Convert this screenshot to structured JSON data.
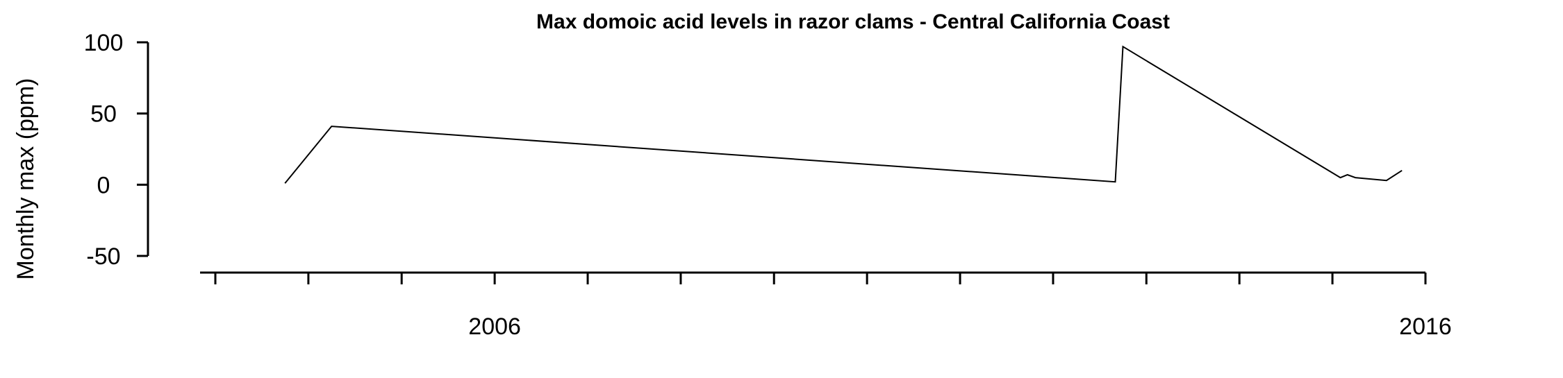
{
  "chart_data": {
    "type": "line",
    "title": "Max domoic acid levels in razor clams - Central California Coast",
    "xlabel": "",
    "ylabel": "Monthly max (ppm)",
    "ylim": [
      -50,
      100
    ],
    "yticks": [
      100,
      50,
      0,
      -50
    ],
    "xlim": [
      "2003-01-01",
      "2016-01-01"
    ],
    "xticks_major": [
      {
        "date": "2006-01-01",
        "label": "2006"
      },
      {
        "date": "2016-01-01",
        "label": "2016"
      }
    ],
    "xticks_minor": [
      "2003-01-01",
      "2004-01-01",
      "2005-01-01",
      "2007-01-01",
      "2008-01-01",
      "2009-01-01",
      "2010-01-01",
      "2011-01-01",
      "2012-01-01",
      "2013-01-01",
      "2014-01-01",
      "2015-01-01"
    ],
    "grid": false,
    "legend": "none",
    "series": [
      {
        "color": "#000000",
        "points": [
          {
            "x": "2003-10-01",
            "y": 1
          },
          {
            "x": "2004-04-01",
            "y": 41
          },
          {
            "x": "2012-09-01",
            "y": 2
          },
          {
            "x": "2012-10-01",
            "y": 97
          },
          {
            "x": "2015-02-01",
            "y": 5
          },
          {
            "x": "2015-03-01",
            "y": 7
          },
          {
            "x": "2015-04-01",
            "y": 5
          },
          {
            "x": "2015-08-01",
            "y": 3
          },
          {
            "x": "2015-10-01",
            "y": 10
          }
        ]
      }
    ]
  }
}
